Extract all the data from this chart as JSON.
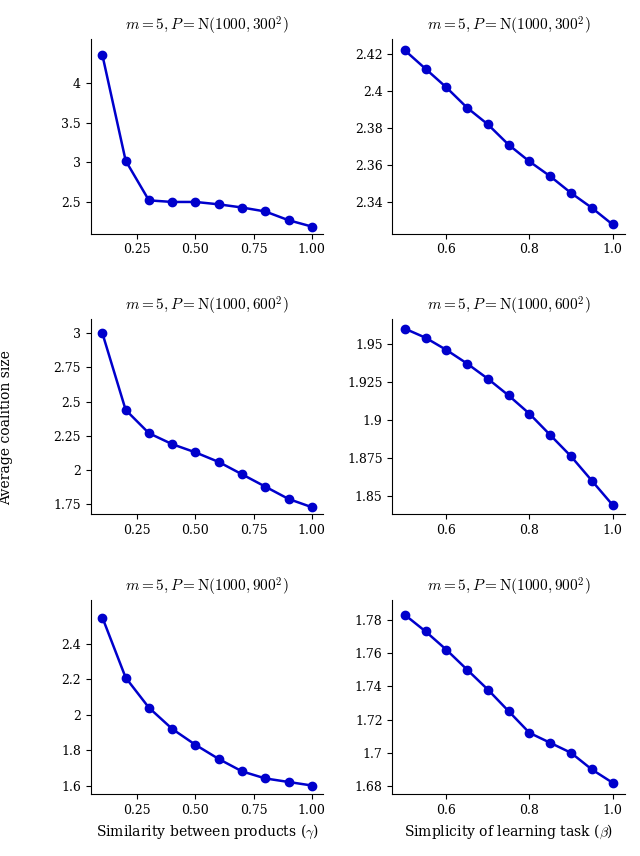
{
  "subplots": [
    {
      "title": "$m = 5, P = \\mathrm{N}(1000, 300^2)$",
      "x": [
        0.1,
        0.2,
        0.3,
        0.4,
        0.5,
        0.6,
        0.7,
        0.8,
        0.9,
        1.0
      ],
      "y": [
        4.35,
        3.02,
        2.52,
        2.5,
        2.5,
        2.47,
        2.43,
        2.38,
        2.27,
        2.19
      ],
      "col": 0,
      "row": 0,
      "xlim": [
        0.05,
        1.05
      ],
      "ylim": [
        2.1,
        4.55
      ],
      "yticks": [
        2.5,
        3.0,
        3.5,
        4.0
      ],
      "xticks": [
        0.25,
        0.5,
        0.75,
        1.0
      ]
    },
    {
      "title": "$m = 5, P = \\mathrm{N}(1000, 300^2)$",
      "x": [
        0.5,
        0.55,
        0.6,
        0.65,
        0.7,
        0.75,
        0.8,
        0.85,
        0.9,
        0.95,
        1.0
      ],
      "y": [
        2.422,
        2.412,
        2.402,
        2.391,
        2.382,
        2.371,
        2.362,
        2.354,
        2.345,
        2.337,
        2.328
      ],
      "col": 1,
      "row": 0,
      "xlim": [
        0.47,
        1.03
      ],
      "ylim": [
        2.323,
        2.428
      ],
      "yticks": [
        2.34,
        2.36,
        2.38,
        2.4,
        2.42
      ],
      "xticks": [
        0.6,
        0.8,
        1.0
      ]
    },
    {
      "title": "$m = 5, P = \\mathrm{N}(1000, 600^2)$",
      "x": [
        0.1,
        0.2,
        0.3,
        0.4,
        0.5,
        0.6,
        0.7,
        0.8,
        0.9,
        1.0
      ],
      "y": [
        3.0,
        2.44,
        2.27,
        2.19,
        2.13,
        2.06,
        1.97,
        1.88,
        1.79,
        1.73
      ],
      "col": 0,
      "row": 1,
      "xlim": [
        0.05,
        1.05
      ],
      "ylim": [
        1.68,
        3.1
      ],
      "yticks": [
        1.75,
        2.0,
        2.25,
        2.5,
        2.75,
        3.0
      ],
      "xticks": [
        0.25,
        0.5,
        0.75,
        1.0
      ]
    },
    {
      "title": "$m = 5, P = \\mathrm{N}(1000, 600^2)$",
      "x": [
        0.5,
        0.55,
        0.6,
        0.65,
        0.7,
        0.75,
        0.8,
        0.85,
        0.9,
        0.95,
        1.0
      ],
      "y": [
        1.96,
        1.954,
        1.946,
        1.937,
        1.927,
        1.916,
        1.904,
        1.89,
        1.876,
        1.86,
        1.844
      ],
      "col": 1,
      "row": 1,
      "xlim": [
        0.47,
        1.03
      ],
      "ylim": [
        1.838,
        1.966
      ],
      "yticks": [
        1.85,
        1.875,
        1.9,
        1.925,
        1.95
      ],
      "xticks": [
        0.6,
        0.8,
        1.0
      ]
    },
    {
      "title": "$m = 5, P = \\mathrm{N}(1000, 900^2)$",
      "x": [
        0.1,
        0.2,
        0.3,
        0.4,
        0.5,
        0.6,
        0.7,
        0.8,
        0.9,
        1.0
      ],
      "y": [
        2.55,
        2.21,
        2.04,
        1.92,
        1.83,
        1.75,
        1.68,
        1.64,
        1.62,
        1.6
      ],
      "col": 0,
      "row": 2,
      "xlim": [
        0.05,
        1.05
      ],
      "ylim": [
        1.55,
        2.65
      ],
      "yticks": [
        1.6,
        1.8,
        2.0,
        2.2,
        2.4
      ],
      "xticks": [
        0.25,
        0.5,
        0.75,
        1.0
      ]
    },
    {
      "title": "$m = 5, P = \\mathrm{N}(1000, 900^2)$",
      "x": [
        0.5,
        0.55,
        0.6,
        0.65,
        0.7,
        0.75,
        0.8,
        0.85,
        0.9,
        0.95,
        1.0
      ],
      "y": [
        1.783,
        1.773,
        1.762,
        1.75,
        1.738,
        1.725,
        1.712,
        1.706,
        1.7,
        1.69,
        1.682
      ],
      "col": 1,
      "row": 2,
      "xlim": [
        0.47,
        1.03
      ],
      "ylim": [
        1.675,
        1.792
      ],
      "yticks": [
        1.68,
        1.7,
        1.72,
        1.74,
        1.76,
        1.78
      ],
      "xticks": [
        0.6,
        0.8,
        1.0
      ]
    }
  ],
  "xlabel_left": "Similarity between products ($\\gamma$)",
  "xlabel_right": "Simplicity of learning task ($\\beta$)",
  "ylabel": "Average coalition size",
  "line_color": "#0000cc",
  "marker": "o",
  "markersize": 6,
  "linewidth": 1.8,
  "title_fontsize": 11,
  "label_fontsize": 10,
  "tick_fontsize": 9,
  "fig_width": 6.4,
  "fig_height": 8.56
}
